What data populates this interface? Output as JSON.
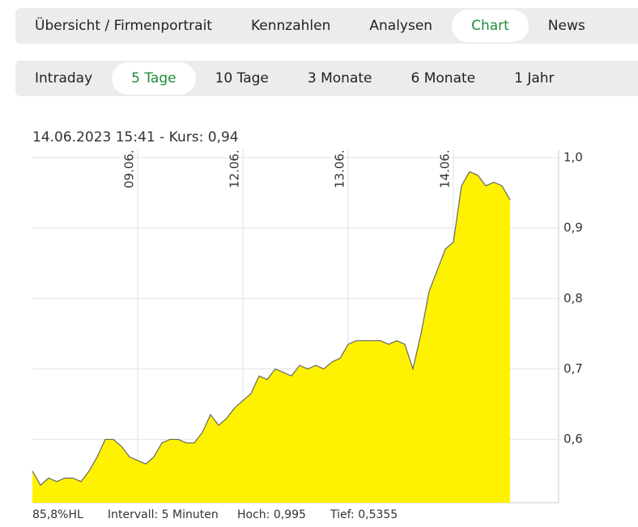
{
  "nav": [
    "Übersicht / Firmenportrait",
    "Kennzahlen",
    "Analysen",
    "Chart",
    "News"
  ],
  "nav_active": 3,
  "ranges": [
    "Intraday",
    "5 Tage",
    "10 Tage",
    "3 Monate",
    "6 Monate",
    "1 Jahr"
  ],
  "range_active": 1,
  "chart_data": {
    "type": "area",
    "title": "14.06.2023 15:41  -  Kurs: 0,94",
    "color": "#fff200",
    "line_color": "#666666",
    "categories": [
      null,
      null,
      null,
      null,
      null,
      null,
      null,
      null,
      null,
      null,
      null,
      null,
      null,
      "09.06.",
      null,
      null,
      null,
      null,
      null,
      null,
      null,
      null,
      null,
      null,
      null,
      null,
      "12.06.",
      null,
      null,
      null,
      null,
      null,
      null,
      null,
      null,
      null,
      null,
      null,
      null,
      "13.06.",
      null,
      null,
      null,
      null,
      null,
      null,
      null,
      null,
      null,
      null,
      null,
      null,
      "14.06.",
      null,
      null,
      null,
      null,
      null,
      null,
      null
    ],
    "values": [
      0.555,
      0.535,
      0.545,
      0.54,
      0.545,
      0.545,
      0.54,
      0.555,
      0.575,
      0.6,
      0.6,
      0.59,
      0.575,
      0.57,
      0.565,
      0.575,
      0.595,
      0.6,
      0.6,
      0.595,
      0.595,
      0.61,
      0.635,
      0.62,
      0.63,
      0.645,
      0.655,
      0.665,
      0.69,
      0.685,
      0.7,
      0.695,
      0.69,
      0.705,
      0.7,
      0.705,
      0.7,
      0.71,
      0.715,
      0.735,
      0.74,
      0.74,
      0.74,
      0.74,
      0.735,
      0.74,
      0.735,
      0.7,
      0.75,
      0.81,
      0.84,
      0.87,
      0.88,
      0.96,
      0.98,
      0.975,
      0.96,
      0.965,
      0.96,
      0.94
    ],
    "ylim": [
      0.51,
      1.0
    ],
    "yticks": [
      {
        "value": 0.6,
        "label": "0,6"
      },
      {
        "value": 0.7,
        "label": "0,7"
      },
      {
        "value": 0.8,
        "label": "0,8"
      },
      {
        "value": 0.9,
        "label": "0,9"
      },
      {
        "value": 1.0,
        "label": "1,0"
      }
    ],
    "grid": true,
    "footer": [
      "85,8%HL",
      "Intervall: 5 Minuten",
      "Hoch:  0,995",
      "Tief: 0,5355"
    ]
  }
}
